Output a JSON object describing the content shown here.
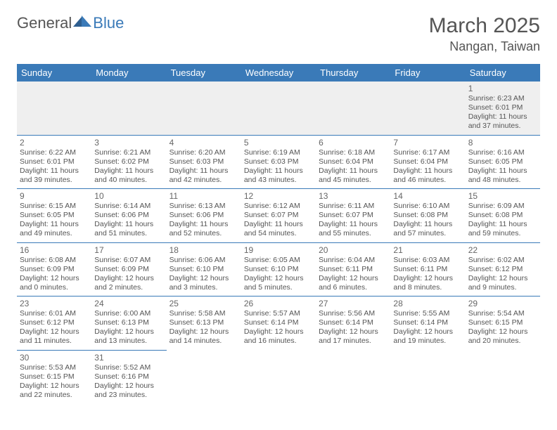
{
  "logo": {
    "text1": "General",
    "text2": "Blue"
  },
  "title": "March 2025",
  "location": "Nangan, Taiwan",
  "daynames": [
    "Sunday",
    "Monday",
    "Tuesday",
    "Wednesday",
    "Thursday",
    "Friday",
    "Saturday"
  ],
  "colors": {
    "header_bg": "#3a7ab8",
    "header_fg": "#ffffff",
    "border": "#3a7ab8",
    "text": "#555555",
    "empty_bg": "#efefef"
  },
  "cell_template": {
    "sunrise_prefix": "Sunrise: ",
    "sunset_prefix": "Sunset: ",
    "daylight_prefix": "Daylight: "
  },
  "weeks": [
    [
      null,
      null,
      null,
      null,
      null,
      null,
      {
        "n": "1",
        "sr": "6:23 AM",
        "ss": "6:01 PM",
        "dl": "11 hours and 37 minutes."
      }
    ],
    [
      {
        "n": "2",
        "sr": "6:22 AM",
        "ss": "6:01 PM",
        "dl": "11 hours and 39 minutes."
      },
      {
        "n": "3",
        "sr": "6:21 AM",
        "ss": "6:02 PM",
        "dl": "11 hours and 40 minutes."
      },
      {
        "n": "4",
        "sr": "6:20 AM",
        "ss": "6:03 PM",
        "dl": "11 hours and 42 minutes."
      },
      {
        "n": "5",
        "sr": "6:19 AM",
        "ss": "6:03 PM",
        "dl": "11 hours and 43 minutes."
      },
      {
        "n": "6",
        "sr": "6:18 AM",
        "ss": "6:04 PM",
        "dl": "11 hours and 45 minutes."
      },
      {
        "n": "7",
        "sr": "6:17 AM",
        "ss": "6:04 PM",
        "dl": "11 hours and 46 minutes."
      },
      {
        "n": "8",
        "sr": "6:16 AM",
        "ss": "6:05 PM",
        "dl": "11 hours and 48 minutes."
      }
    ],
    [
      {
        "n": "9",
        "sr": "6:15 AM",
        "ss": "6:05 PM",
        "dl": "11 hours and 49 minutes."
      },
      {
        "n": "10",
        "sr": "6:14 AM",
        "ss": "6:06 PM",
        "dl": "11 hours and 51 minutes."
      },
      {
        "n": "11",
        "sr": "6:13 AM",
        "ss": "6:06 PM",
        "dl": "11 hours and 52 minutes."
      },
      {
        "n": "12",
        "sr": "6:12 AM",
        "ss": "6:07 PM",
        "dl": "11 hours and 54 minutes."
      },
      {
        "n": "13",
        "sr": "6:11 AM",
        "ss": "6:07 PM",
        "dl": "11 hours and 55 minutes."
      },
      {
        "n": "14",
        "sr": "6:10 AM",
        "ss": "6:08 PM",
        "dl": "11 hours and 57 minutes."
      },
      {
        "n": "15",
        "sr": "6:09 AM",
        "ss": "6:08 PM",
        "dl": "11 hours and 59 minutes."
      }
    ],
    [
      {
        "n": "16",
        "sr": "6:08 AM",
        "ss": "6:09 PM",
        "dl": "12 hours and 0 minutes."
      },
      {
        "n": "17",
        "sr": "6:07 AM",
        "ss": "6:09 PM",
        "dl": "12 hours and 2 minutes."
      },
      {
        "n": "18",
        "sr": "6:06 AM",
        "ss": "6:10 PM",
        "dl": "12 hours and 3 minutes."
      },
      {
        "n": "19",
        "sr": "6:05 AM",
        "ss": "6:10 PM",
        "dl": "12 hours and 5 minutes."
      },
      {
        "n": "20",
        "sr": "6:04 AM",
        "ss": "6:11 PM",
        "dl": "12 hours and 6 minutes."
      },
      {
        "n": "21",
        "sr": "6:03 AM",
        "ss": "6:11 PM",
        "dl": "12 hours and 8 minutes."
      },
      {
        "n": "22",
        "sr": "6:02 AM",
        "ss": "6:12 PM",
        "dl": "12 hours and 9 minutes."
      }
    ],
    [
      {
        "n": "23",
        "sr": "6:01 AM",
        "ss": "6:12 PM",
        "dl": "12 hours and 11 minutes."
      },
      {
        "n": "24",
        "sr": "6:00 AM",
        "ss": "6:13 PM",
        "dl": "12 hours and 13 minutes."
      },
      {
        "n": "25",
        "sr": "5:58 AM",
        "ss": "6:13 PM",
        "dl": "12 hours and 14 minutes."
      },
      {
        "n": "26",
        "sr": "5:57 AM",
        "ss": "6:14 PM",
        "dl": "12 hours and 16 minutes."
      },
      {
        "n": "27",
        "sr": "5:56 AM",
        "ss": "6:14 PM",
        "dl": "12 hours and 17 minutes."
      },
      {
        "n": "28",
        "sr": "5:55 AM",
        "ss": "6:14 PM",
        "dl": "12 hours and 19 minutes."
      },
      {
        "n": "29",
        "sr": "5:54 AM",
        "ss": "6:15 PM",
        "dl": "12 hours and 20 minutes."
      }
    ],
    [
      {
        "n": "30",
        "sr": "5:53 AM",
        "ss": "6:15 PM",
        "dl": "12 hours and 22 minutes."
      },
      {
        "n": "31",
        "sr": "5:52 AM",
        "ss": "6:16 PM",
        "dl": "12 hours and 23 minutes."
      },
      null,
      null,
      null,
      null,
      null
    ]
  ]
}
